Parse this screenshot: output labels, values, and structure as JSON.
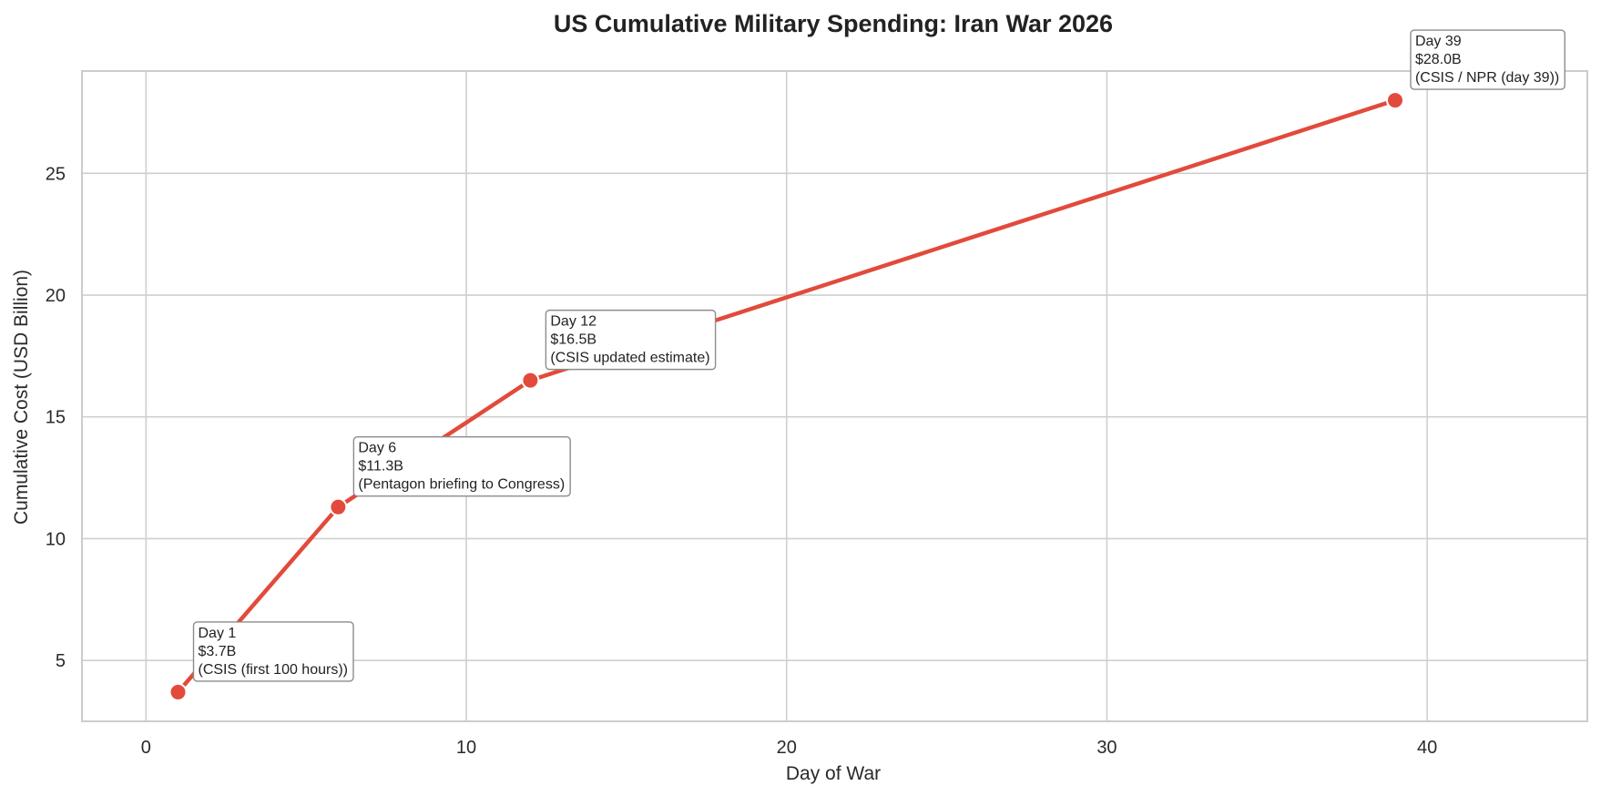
{
  "chart_data": {
    "type": "line",
    "title": "US Cumulative Military Spending: Iran War 2026",
    "xlabel": "Day of War",
    "ylabel": "Cumulative Cost (USD Billion)",
    "xlim": [
      -2,
      45
    ],
    "ylim": [
      2.5,
      29.2
    ],
    "xticks": [
      0,
      10,
      20,
      30,
      40
    ],
    "yticks": [
      5,
      10,
      15,
      20,
      25
    ],
    "grid": true,
    "line_color": "#e24a3b",
    "marker_color": "#e24a3b",
    "series": [
      {
        "points": [
          {
            "x": 1,
            "y": 3.7
          },
          {
            "x": 6,
            "y": 11.3
          },
          {
            "x": 12,
            "y": 16.5
          },
          {
            "x": 39,
            "y": 28.0
          }
        ]
      }
    ],
    "annotations": [
      {
        "x": 1,
        "y": 3.7,
        "lines": [
          "Day 1",
          "$3.7B",
          "(CSIS (first 100 hours))"
        ]
      },
      {
        "x": 6,
        "y": 11.3,
        "lines": [
          "Day 6",
          "$11.3B",
          "(Pentagon briefing to Congress)"
        ]
      },
      {
        "x": 12,
        "y": 16.5,
        "lines": [
          "Day 12",
          "$16.5B",
          "(CSIS updated estimate)"
        ]
      },
      {
        "x": 39,
        "y": 28.0,
        "lines": [
          "Day 39",
          "$28.0B",
          "(CSIS / NPR (day 39))"
        ]
      }
    ]
  }
}
